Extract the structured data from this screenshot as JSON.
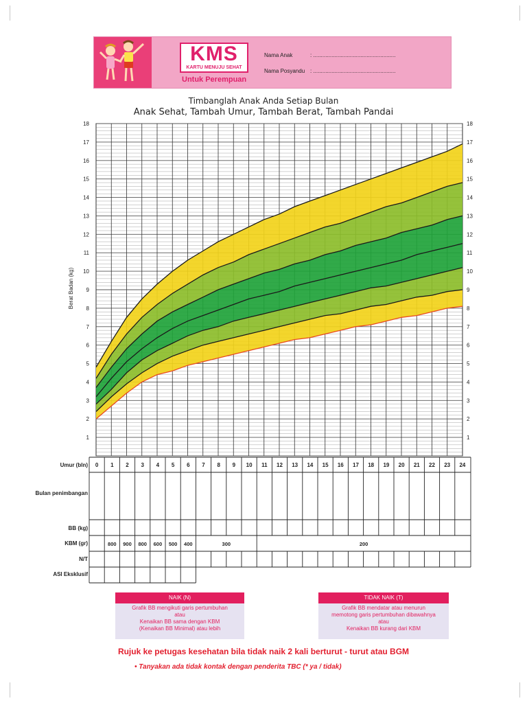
{
  "header": {
    "logo_text": "KMS",
    "logo_subtitle": "KARTU MENUJU SEHAT",
    "audience": "Untuk Perempuan",
    "fields": [
      {
        "label": "Nama Anak",
        "value": ":  ......................................................"
      },
      {
        "label": "Nama Posyandu",
        "value": ":  ......................................................"
      }
    ]
  },
  "title": {
    "line1": "Timbanglah Anak Anda Setiap Bulan",
    "line2": "Anak Sehat, Tambah Umur, Tambah Berat, Tambah Pandai"
  },
  "chart_data": {
    "type": "area",
    "ylabel": "Berat Badan (kg)",
    "xlabel": "Umur (bln)",
    "ylim": [
      0,
      18
    ],
    "xlim": [
      0,
      24
    ],
    "yticks": [
      1,
      2,
      3,
      4,
      5,
      6,
      7,
      8,
      9,
      10,
      11,
      12,
      13,
      14,
      15,
      16,
      17,
      18
    ],
    "x": [
      0,
      1,
      2,
      3,
      4,
      5,
      6,
      7,
      8,
      9,
      10,
      11,
      12,
      13,
      14,
      15,
      16,
      17,
      18,
      19,
      20,
      21,
      22,
      23,
      24
    ],
    "series": [
      {
        "values": [
          2.0,
          2.7,
          3.4,
          4.0,
          4.4,
          4.6,
          4.9,
          5.1,
          5.3,
          5.5,
          5.7,
          5.9,
          6.1,
          6.3,
          6.4,
          6.6,
          6.8,
          7.0,
          7.1,
          7.3,
          7.5,
          7.6,
          7.8,
          8.0,
          8.1
        ]
      },
      {
        "values": [
          2.4,
          3.2,
          3.9,
          4.5,
          5.0,
          5.4,
          5.7,
          6.0,
          6.2,
          6.4,
          6.6,
          6.8,
          7.0,
          7.2,
          7.4,
          7.6,
          7.7,
          7.9,
          8.1,
          8.2,
          8.4,
          8.6,
          8.7,
          8.9,
          9.0
        ]
      },
      {
        "values": [
          2.8,
          3.6,
          4.5,
          5.2,
          5.7,
          6.1,
          6.5,
          6.8,
          7.0,
          7.3,
          7.5,
          7.7,
          7.9,
          8.1,
          8.3,
          8.5,
          8.7,
          8.9,
          9.1,
          9.2,
          9.4,
          9.6,
          9.8,
          10.0,
          10.2
        ]
      },
      {
        "values": [
          3.2,
          4.2,
          5.1,
          5.8,
          6.4,
          6.9,
          7.3,
          7.6,
          7.9,
          8.2,
          8.5,
          8.7,
          8.9,
          9.2,
          9.4,
          9.6,
          9.8,
          10.0,
          10.2,
          10.4,
          10.6,
          10.9,
          11.1,
          11.3,
          11.5
        ]
      },
      {
        "values": [
          3.7,
          4.8,
          5.8,
          6.6,
          7.3,
          7.8,
          8.2,
          8.6,
          9.0,
          9.3,
          9.6,
          9.9,
          10.1,
          10.4,
          10.6,
          10.9,
          11.1,
          11.4,
          11.6,
          11.8,
          12.1,
          12.3,
          12.5,
          12.8,
          13.0
        ]
      },
      {
        "values": [
          4.2,
          5.5,
          6.6,
          7.5,
          8.2,
          8.8,
          9.3,
          9.8,
          10.2,
          10.5,
          10.9,
          11.2,
          11.5,
          11.8,
          12.1,
          12.4,
          12.6,
          12.9,
          13.2,
          13.5,
          13.7,
          14.0,
          14.3,
          14.6,
          14.8
        ]
      },
      {
        "values": [
          4.8,
          6.2,
          7.5,
          8.5,
          9.3,
          10.0,
          10.6,
          11.1,
          11.6,
          12.0,
          12.4,
          12.8,
          13.1,
          13.5,
          13.8,
          14.1,
          14.4,
          14.7,
          15.0,
          15.3,
          15.6,
          15.9,
          16.2,
          16.5,
          16.9
        ]
      }
    ],
    "colors": {
      "outer_band": "#f2d21a",
      "inner_band": "#8cbd2a",
      "center_band": "#1fa33a",
      "line": "#1a1a1a",
      "bgm_line": "#e84a1f"
    }
  },
  "table": {
    "rows": [
      {
        "label": "Umur (bln)"
      },
      {
        "label": "Bulan penimbangan"
      },
      {
        "label": "BB (kg)"
      },
      {
        "label": "KBM (gr)"
      },
      {
        "label": "N/T"
      },
      {
        "label": "ASI Eksklusif"
      }
    ],
    "months": [
      "0",
      "1",
      "2",
      "3",
      "4",
      "5",
      "6",
      "7",
      "8",
      "9",
      "10",
      "11",
      "12",
      "13",
      "14",
      "15",
      "16",
      "17",
      "18",
      "19",
      "20",
      "21",
      "22",
      "23",
      "24"
    ],
    "kbm": [
      "800",
      "900",
      "800",
      "600",
      "500",
      "400",
      "300",
      "200"
    ]
  },
  "legend": {
    "naik": {
      "title": "NAIK (N)",
      "lines": [
        "Grafik BB mengikuti garis pertumbuhan",
        "atau",
        "Kenaikan BB sama dengan KBM",
        "(Kenaikan BB Minimal) atau lebih"
      ]
    },
    "tidak_naik": {
      "title": "TIDAK NAIK (T)",
      "lines": [
        "Grafik BB mendatar atau menurun",
        "memotong garis pertumbuhan dibawahnya",
        "atau",
        "Kenaikan BB kurang dari KBM"
      ]
    }
  },
  "footer": {
    "refer": "Rujuk ke petugas kesehatan bila tidak naik 2 kali berturut - turut atau BGM",
    "tbc": "•  Tanyakan ada tidak kontak dengan penderita TBC (* ya / tidak)"
  }
}
